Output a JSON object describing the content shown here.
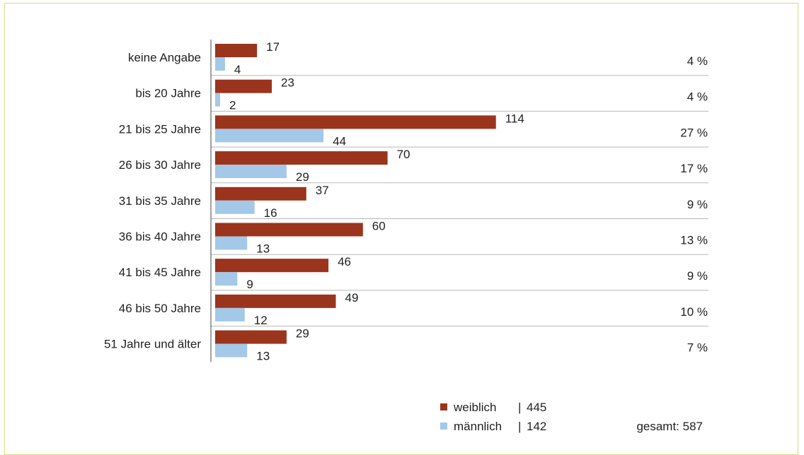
{
  "chart_data": {
    "type": "bar",
    "orientation": "horizontal",
    "categories": [
      "keine Angabe",
      "bis 20 Jahre",
      "21 bis 25 Jahre",
      "26 bis 30 Jahre",
      "31 bis 35 Jahre",
      "36 bis 40 Jahre",
      "41 bis 45 Jahre",
      "46 bis 50 Jahre",
      "51 Jahre und älter"
    ],
    "series": [
      {
        "name": "weiblich",
        "values": [
          17,
          23,
          114,
          70,
          37,
          60,
          46,
          49,
          29
        ],
        "color": "#9b341c"
      },
      {
        "name": "männlich",
        "values": [
          4,
          2,
          44,
          29,
          16,
          13,
          9,
          12,
          13
        ],
        "color": "#a3c8e8"
      }
    ],
    "percentages": [
      "4 %",
      "4 %",
      "27 %",
      "17 %",
      "9 %",
      "13 %",
      "9 %",
      "10 %",
      "7 %"
    ],
    "xlim": [
      0,
      140
    ],
    "legend": [
      {
        "label": "weiblich",
        "separator": "|",
        "total": "445"
      },
      {
        "label": "männlich",
        "separator": "|",
        "total": "142"
      }
    ],
    "legend_position": "bottom",
    "grid": "horizontal separators",
    "title": "",
    "xlabel": "",
    "ylabel": ""
  },
  "summary": {
    "total_label": "gesamt: 587"
  },
  "colors": {
    "frame_border": "#d9dd80",
    "separator": "#b8b8b8",
    "axis": "#444444"
  }
}
